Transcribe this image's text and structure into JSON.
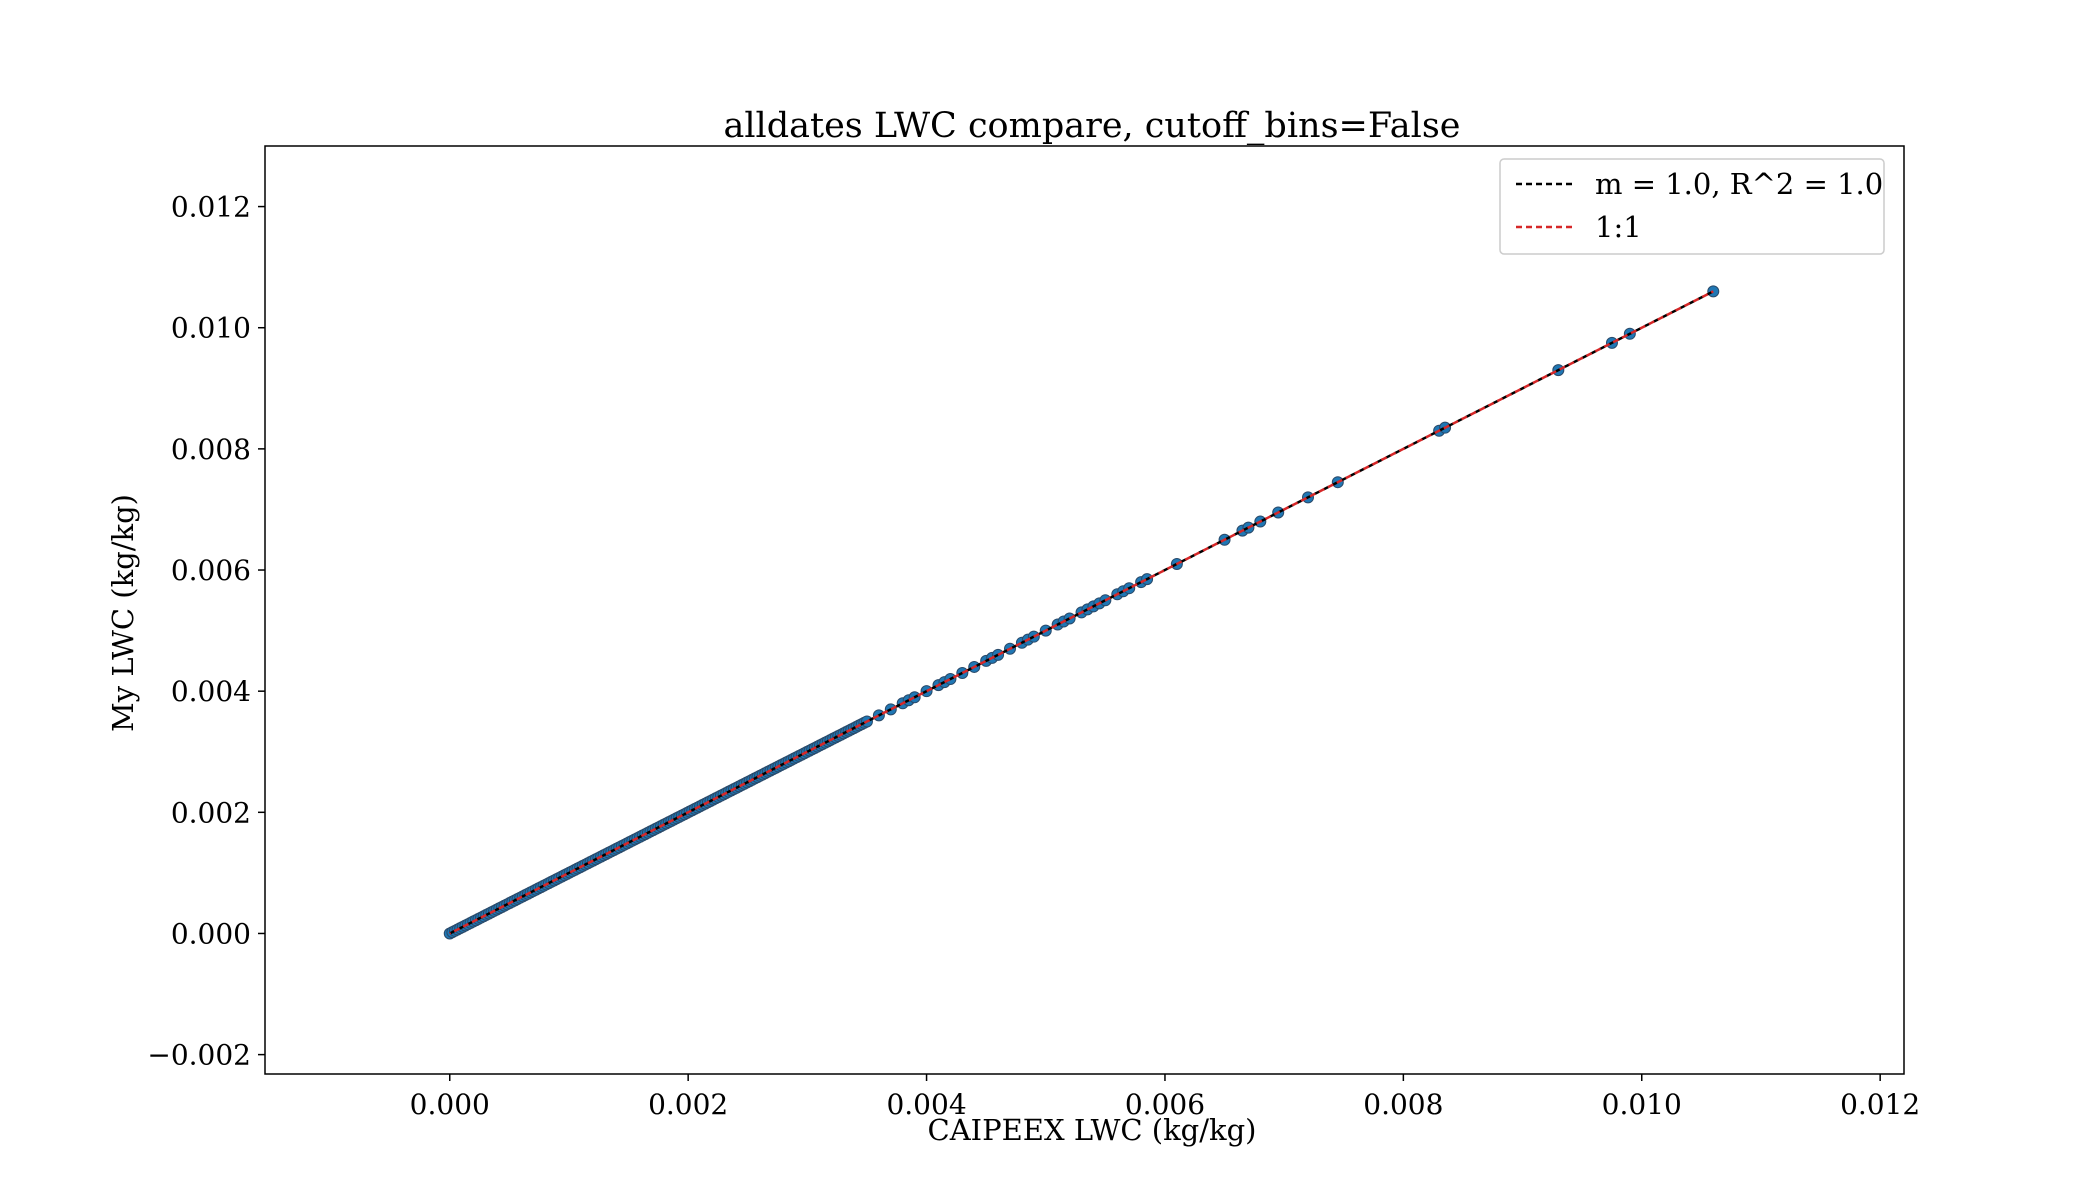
{
  "chart_data": {
    "type": "scatter",
    "title": "alldates LWC compare, cutoff_bins=False",
    "xlabel": "CAIPEEX LWC (kg/kg)",
    "ylabel": "My LWC (kg/kg)",
    "xlim": [
      -0.00155,
      0.0122
    ],
    "ylim": [
      -0.00232,
      0.013
    ],
    "xticks": [
      0.0,
      0.002,
      0.004,
      0.006,
      0.008,
      0.01,
      0.012
    ],
    "xtick_labels": [
      "0.000",
      "0.002",
      "0.004",
      "0.006",
      "0.008",
      "0.010",
      "0.012"
    ],
    "yticks": [
      -0.002,
      0.0,
      0.002,
      0.004,
      0.006,
      0.008,
      0.01,
      0.012
    ],
    "ytick_labels": [
      "−0.002",
      "0.000",
      "0.002",
      "0.004",
      "0.006",
      "0.008",
      "0.010",
      "0.012"
    ],
    "grid": false,
    "legend_position": "top-right",
    "colors": {
      "points": "#1f77b4",
      "point_edge": "#2a4a6a",
      "fit_line": "#000000",
      "one_to_one": "#d62728"
    },
    "series": [
      {
        "name": "data",
        "kind": "scatter",
        "dense_range": [
          0.0,
          0.0035
        ],
        "sparse_points": [
          0.0036,
          0.0037,
          0.0038,
          0.00385,
          0.0039,
          0.004,
          0.0041,
          0.00415,
          0.0042,
          0.0043,
          0.0044,
          0.0045,
          0.00455,
          0.0046,
          0.0047,
          0.0048,
          0.00485,
          0.0049,
          0.005,
          0.0051,
          0.00515,
          0.0052,
          0.0053,
          0.00535,
          0.0054,
          0.00545,
          0.0055,
          0.0056,
          0.00565,
          0.0057,
          0.0058,
          0.00585,
          0.0061,
          0.0065,
          0.00665,
          0.0067,
          0.0068,
          0.00695,
          0.0072,
          0.00745,
          0.0083,
          0.00835,
          0.0093,
          0.00975,
          0.0099,
          0.0106
        ]
      },
      {
        "name": "m = 1.0, R^2 = 1.0",
        "kind": "line",
        "style": "dashed",
        "x": [
          0.0,
          0.0106
        ],
        "y": [
          0.0,
          0.0106
        ]
      },
      {
        "name": "1:1",
        "kind": "line",
        "style": "dashed",
        "x": [
          0.0,
          0.0106
        ],
        "y": [
          0.0,
          0.0106
        ]
      }
    ]
  }
}
